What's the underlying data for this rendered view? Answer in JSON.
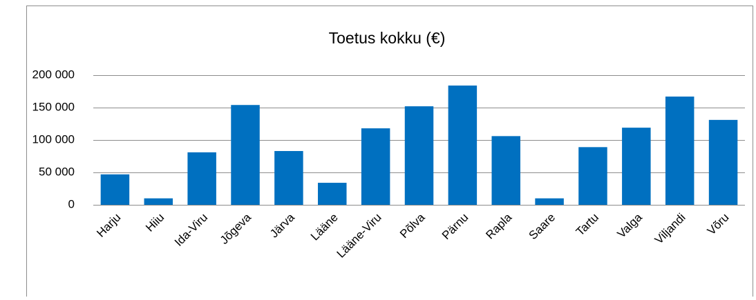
{
  "chart_data": {
    "type": "bar",
    "title": "Toetus kokku (€)",
    "categories": [
      "Harju",
      "Hiiu",
      "Ida-Viru",
      "Jõgeva",
      "Järva",
      "Lääne",
      "Lääne-Viru",
      "Põlva",
      "Pärnu",
      "Rapla",
      "Saare",
      "Tartu",
      "Valga",
      "Viljandi",
      "Võru"
    ],
    "values": [
      47000,
      10000,
      81000,
      154000,
      83000,
      34000,
      118000,
      152000,
      184000,
      106000,
      10000,
      89000,
      119000,
      167000,
      131000
    ],
    "color": "#0070c0",
    "ylim": [
      0,
      200000
    ],
    "yticks": [
      0,
      {
        "value": 50000,
        "label": "50 000"
      },
      {
        "value": 100000,
        "label": "100 000"
      },
      {
        "value": 150000,
        "label": "150 000"
      },
      {
        "value": 200000,
        "label": "200 000"
      }
    ],
    "grid": true
  }
}
